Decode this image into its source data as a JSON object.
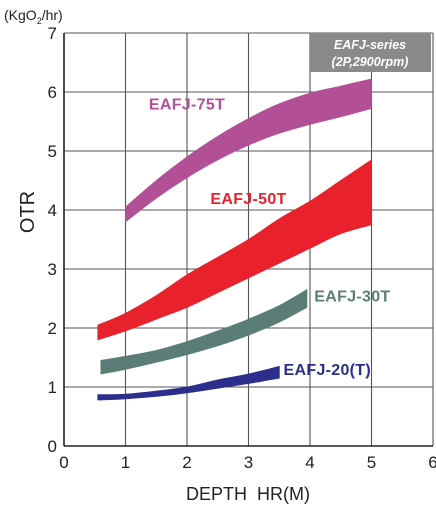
{
  "chart_data": {
    "type": "area",
    "title": "",
    "unit_label_prefix": "(KgO",
    "unit_label_sub": "2",
    "unit_label_suffix": "/hr)",
    "xlabel": "DEPTH  HR(M)",
    "ylabel": "OTR",
    "xlim": [
      0,
      6
    ],
    "ylim": [
      0,
      7
    ],
    "xticks": [
      0,
      1,
      2,
      3,
      4,
      5,
      6
    ],
    "yticks": [
      0,
      1,
      2,
      3,
      4,
      5,
      6,
      7
    ],
    "grid": true,
    "legend_box": {
      "line1": "EAFJ-series",
      "line2": "(2P,2900rpm)",
      "position": "top-right",
      "color": "#8a8a8a"
    },
    "series": [
      {
        "name": "EAFJ-75T",
        "color": "#b34f97",
        "label_color": "#b34f97",
        "x": [
          1.0,
          1.5,
          2.0,
          2.5,
          3.0,
          3.5,
          4.0,
          4.5,
          5.0
        ],
        "lower": [
          3.8,
          4.2,
          4.55,
          4.85,
          5.1,
          5.3,
          5.45,
          5.58,
          5.72
        ],
        "upper": [
          4.05,
          4.5,
          4.9,
          5.25,
          5.55,
          5.8,
          5.98,
          6.1,
          6.22
        ]
      },
      {
        "name": "EAFJ-50T",
        "color": "#e8212c",
        "label_color": "#e8212c",
        "x": [
          0.55,
          1.0,
          1.5,
          2.0,
          2.5,
          3.0,
          3.5,
          4.0,
          4.5,
          5.0
        ],
        "lower": [
          1.8,
          1.95,
          2.15,
          2.35,
          2.6,
          2.85,
          3.1,
          3.35,
          3.6,
          3.75
        ],
        "upper": [
          2.05,
          2.25,
          2.55,
          2.9,
          3.2,
          3.5,
          3.85,
          4.15,
          4.5,
          4.85
        ]
      },
      {
        "name": "EAFJ-30T",
        "color": "#5a7d76",
        "label_color": "#5a7d76",
        "x": [
          0.6,
          1.0,
          1.5,
          2.0,
          2.5,
          3.0,
          3.5,
          3.95
        ],
        "lower": [
          1.22,
          1.3,
          1.42,
          1.55,
          1.7,
          1.88,
          2.1,
          2.35
        ],
        "upper": [
          1.45,
          1.52,
          1.62,
          1.77,
          1.95,
          2.15,
          2.38,
          2.65
        ]
      },
      {
        "name": "EAFJ-20(T)",
        "color": "#2b2e8c",
        "label_color": "#2b2e8c",
        "x": [
          0.55,
          1.0,
          1.5,
          2.0,
          2.5,
          3.0,
          3.5
        ],
        "lower": [
          0.78,
          0.8,
          0.84,
          0.9,
          0.98,
          1.06,
          1.15
        ],
        "upper": [
          0.87,
          0.88,
          0.93,
          1.0,
          1.12,
          1.22,
          1.35
        ]
      }
    ]
  }
}
